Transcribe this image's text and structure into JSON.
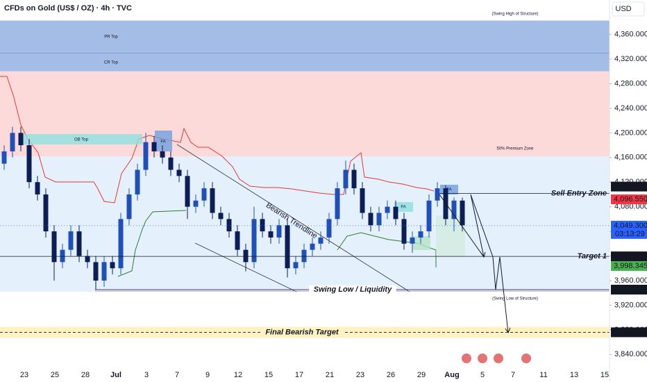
{
  "chart_data": {
    "type": "candlestick",
    "title": "CFDs on Gold (US$ / OZ) · 4h · TVC",
    "currency": "USD",
    "categories": [
      "23",
      "25",
      "28",
      "Jul",
      "3",
      "7",
      "9",
      "12",
      "15",
      "17",
      "21",
      "23",
      "26",
      "29",
      "Aug",
      "5",
      "7",
      "11",
      "13",
      "15"
    ],
    "ylim": [
      3820,
      4416
    ],
    "yticks": [
      {
        "value": 3840,
        "label": "3,840.000"
      },
      {
        "value": 3880,
        "label": "3,880.000"
      },
      {
        "value": 3920,
        "label": "3,920.000"
      },
      {
        "value": 3960,
        "label": "3,960.000"
      },
      {
        "value": 4000,
        "label": "4,000.000"
      },
      {
        "value": 4040,
        "label": "4,040.000"
      },
      {
        "value": 4080,
        "label": "4,080.000"
      },
      {
        "value": 4120,
        "label": "4,120.000"
      },
      {
        "value": 4160,
        "label": "4,160.000"
      },
      {
        "value": 4200,
        "label": "4,200.000"
      },
      {
        "value": 4240,
        "label": "4,240.000"
      },
      {
        "value": 4280,
        "label": "4,280.000"
      },
      {
        "value": 4320,
        "label": "4,320.000"
      },
      {
        "value": 4360,
        "label": "4,360.000"
      }
    ],
    "up_color": "#1f4fb8",
    "down_color": "#0c1d57",
    "open": [
      4150,
      4170,
      4200,
      4180,
      4120,
      4100,
      4040,
      3990,
      4010,
      4040,
      4000,
      3990,
      3960,
      3990,
      3980,
      4060,
      4100,
      4140,
      4185,
      4170,
      4160,
      4140,
      4130,
      4080,
      4090,
      4110,
      4070,
      4060,
      4040,
      4010,
      3990,
      4060,
      4040,
      4030,
      4050,
      3980,
      3990,
      4010,
      4020,
      4030,
      4060,
      4110,
      4140,
      4110,
      4070,
      4050,
      4070,
      4080,
      4060,
      4020,
      4030,
      4040,
      4090,
      4110,
      4060,
      4090
    ],
    "high": [
      4180,
      4210,
      4210,
      4190,
      4130,
      4110,
      4050,
      4020,
      4050,
      4050,
      4010,
      4000,
      4000,
      4000,
      4070,
      4110,
      4150,
      4200,
      4195,
      4180,
      4170,
      4150,
      4140,
      4100,
      4120,
      4120,
      4080,
      4070,
      4050,
      4020,
      4080,
      4070,
      4050,
      4060,
      4060,
      4000,
      4020,
      4030,
      4040,
      4070,
      4120,
      4155,
      4150,
      4120,
      4080,
      4080,
      4090,
      4090,
      4070,
      4040,
      4050,
      4100,
      4120,
      4115,
      4095,
      4095
    ],
    "low": [
      4140,
      4160,
      4170,
      4110,
      4090,
      4030,
      3960,
      3980,
      4000,
      3990,
      3980,
      3945,
      3950,
      3970,
      3970,
      4050,
      4090,
      4130,
      4160,
      4150,
      4130,
      4120,
      4060,
      4070,
      4080,
      4060,
      4050,
      4030,
      4000,
      3975,
      3980,
      4030,
      4020,
      4020,
      3965,
      3970,
      3980,
      4000,
      4010,
      4020,
      4050,
      4100,
      4100,
      4060,
      4040,
      4040,
      4060,
      4050,
      4010,
      4005,
      4020,
      4030,
      4080,
      4050,
      4040,
      4040
    ],
    "close": [
      4170,
      4200,
      4180,
      4120,
      4100,
      4040,
      3990,
      4010,
      4040,
      4000,
      3990,
      3960,
      3990,
      3980,
      4060,
      4100,
      4140,
      4185,
      4170,
      4160,
      4140,
      4130,
      4080,
      4090,
      4110,
      4070,
      4060,
      4040,
      4010,
      3990,
      4060,
      4040,
      4030,
      4050,
      3980,
      3990,
      4010,
      4020,
      4030,
      4060,
      4110,
      4140,
      4110,
      4070,
      4050,
      4070,
      4080,
      4060,
      4020,
      4030,
      4040,
      4090,
      4110,
      4060,
      4090,
      4050
    ],
    "zones": [
      {
        "label": "PR Top",
        "from": 4329.5,
        "to": 4382.6,
        "color": "#a3bde6"
      },
      {
        "label": "CR Top",
        "from": 4300,
        "to": 4329.5,
        "color": "#a3bde6"
      },
      {
        "label": "50% Premium Zone",
        "from": 4162,
        "to": 4300,
        "color": "#fcdada"
      },
      {
        "from": 3941.7,
        "to": 4162,
        "color": "#e4f0fb"
      },
      {
        "from": 3867,
        "to": 3885,
        "color": "#fff2c2"
      }
    ],
    "levels": [
      {
        "label": "Sell Entry Zone",
        "value": 4101.499,
        "price_label": "4,101.499"
      },
      {
        "label": "Target 1",
        "value": 3999.36,
        "price_label": "3,999.360"
      },
      {
        "label": "Swing Low / Liquidity",
        "value": 3945.287,
        "price_label": "3,945.287"
      },
      {
        "label": "Final Bearish Target",
        "value": 3875.953,
        "price_label": "3,875.953"
      }
    ],
    "price_markers": [
      {
        "value": 4096.55,
        "label": "4,096.550",
        "color": "#f23645"
      },
      {
        "value": 4049.3,
        "label": "4,049.300",
        "color": "#2962ff",
        "countdown": "03:13:29"
      },
      {
        "value": 3998.345,
        "label": "3,998.345",
        "color": "#4caf50"
      }
    ],
    "annotations": [
      "(Swing High of Structure)",
      "(Swing Low of Structure)",
      "Bearish Trendline",
      "OB Top",
      "FA",
      "FA",
      "FA"
    ]
  }
}
